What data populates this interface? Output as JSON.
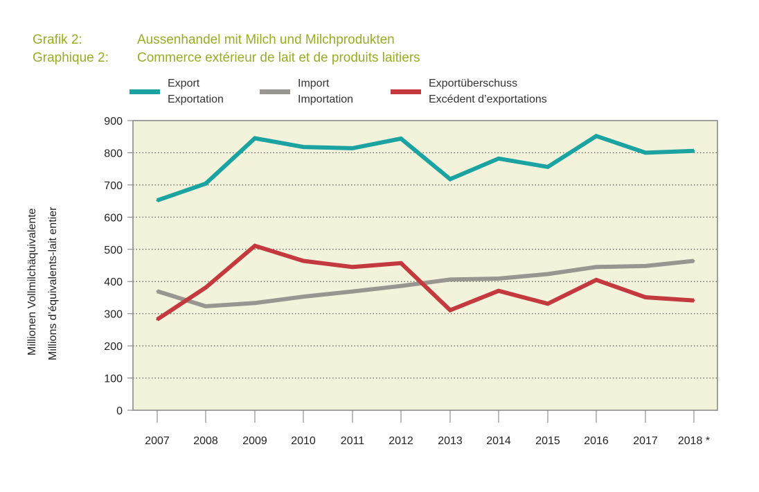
{
  "header": {
    "line1": {
      "label": "Grafik 2:",
      "text": "Aussenhandel mit Milch und Milchprodukten"
    },
    "line2": {
      "label": "Graphique 2:",
      "text": "Commerce extérieur de lait et de produits laitiers"
    }
  },
  "chart_data": {
    "type": "line",
    "title": "Aussenhandel mit Milch und Milchprodukten / Commerce extérieur de lait et de produits laitiers",
    "ylabel": "Millionen Vollmilchäquivalente / Millions d’équivalents-lait entier",
    "ylabel_line1": "Millionen  Vollmilchäquivalente",
    "ylabel_line2": "Millions d’équivalents-lait entier",
    "xlabel": "",
    "categories": [
      "2007",
      "2008",
      "2009",
      "2010",
      "2011",
      "2012",
      "2013",
      "2014",
      "2015",
      "2016",
      "2017",
      "2018 *"
    ],
    "ylim": [
      0,
      900
    ],
    "yticks": [
      0,
      100,
      200,
      300,
      400,
      500,
      600,
      700,
      800,
      900
    ],
    "grid": "horizontal dotted",
    "plot_background": "#f3f3dc",
    "legend_position": "top",
    "series": [
      {
        "name_line1": "Export",
        "name_line2": "Exportation",
        "color": "#1aa3a0",
        "values": [
          652,
          704,
          845,
          818,
          814,
          844,
          718,
          782,
          756,
          852,
          800,
          806
        ]
      },
      {
        "name_line1": "Import",
        "name_line2": "Importation",
        "color": "#999590",
        "values": [
          370,
          323,
          333,
          353,
          369,
          386,
          406,
          409,
          423,
          445,
          448,
          464
        ]
      },
      {
        "name_line1": "Exportüberschuss",
        "name_line2": "Excédent d’exportations",
        "color": "#c4393d",
        "values": [
          282,
          381,
          511,
          464,
          445,
          457,
          311,
          371,
          331,
          405,
          351,
          341
        ]
      }
    ]
  }
}
